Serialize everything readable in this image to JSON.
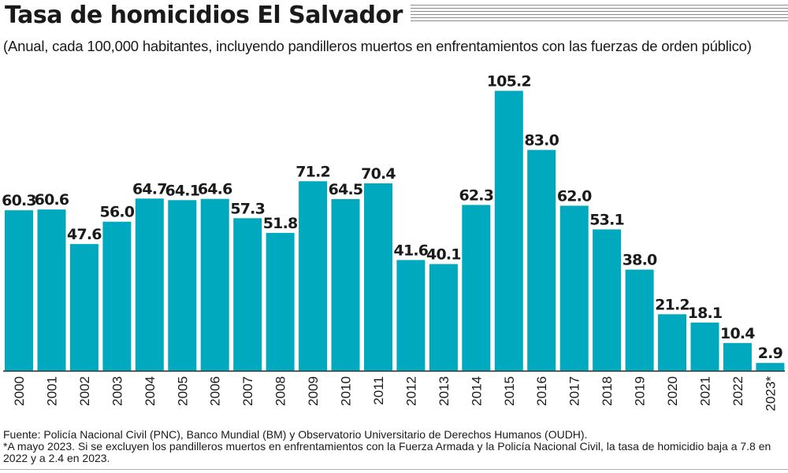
{
  "title": "Tasa de homicidios El Salvador",
  "subtitle": "(Anual, cada 100,000 habitantes, incluyendo pandilleros muertos en enfrentamientos con las fuerzas de orden público)",
  "colors": {
    "bar": "#00a9bd",
    "text": "#1a1a1a",
    "axis": "#222222"
  },
  "chart_data": {
    "type": "bar",
    "title": "Tasa de homicidios El Salvador",
    "xlabel": "",
    "ylabel": "",
    "grid": false,
    "legend": "none",
    "ylim": [
      0,
      110
    ],
    "categories": [
      "2000",
      "2001",
      "2002",
      "2003",
      "2004",
      "2005",
      "2006",
      "2007",
      "2008",
      "2009",
      "2010",
      "2011",
      "2012",
      "2013",
      "2014",
      "2015",
      "2016",
      "2017",
      "2018",
      "2019",
      "2020",
      "2021",
      "2022",
      "2023*"
    ],
    "values": [
      60.3,
      60.6,
      47.6,
      56.0,
      64.7,
      64.1,
      64.6,
      57.3,
      51.8,
      71.2,
      64.5,
      70.4,
      41.6,
      40.1,
      62.3,
      105.2,
      83.0,
      62.0,
      53.1,
      38.0,
      21.2,
      18.1,
      10.4,
      2.9
    ],
    "labels": [
      "60.3",
      "60.6",
      "47.6",
      "56.0",
      "64.7",
      "64.1",
      "64.6",
      "57.3",
      "51.8",
      "71.2",
      "64.5",
      "70.4",
      "41.6",
      "40.1",
      "62.3",
      "105.2",
      "83.0",
      "62.0",
      "53.1",
      "38.0",
      "21.2",
      "18.1",
      "10.4",
      "2.9"
    ]
  },
  "source": {
    "line1": "Fuente: Policía Nacional Civil (PNC), Banco Mundial (BM) y Observatorio Universitario de Derechos Humanos (OUDH).",
    "line2": "*A mayo 2023. Si se excluyen los pandilleros muertos en enfrentamientos con la Fuerza Armada y la Policía Nacional Civil, la tasa de homicidio baja a 7.8 en 2022 y a 2.4 en 2023."
  }
}
